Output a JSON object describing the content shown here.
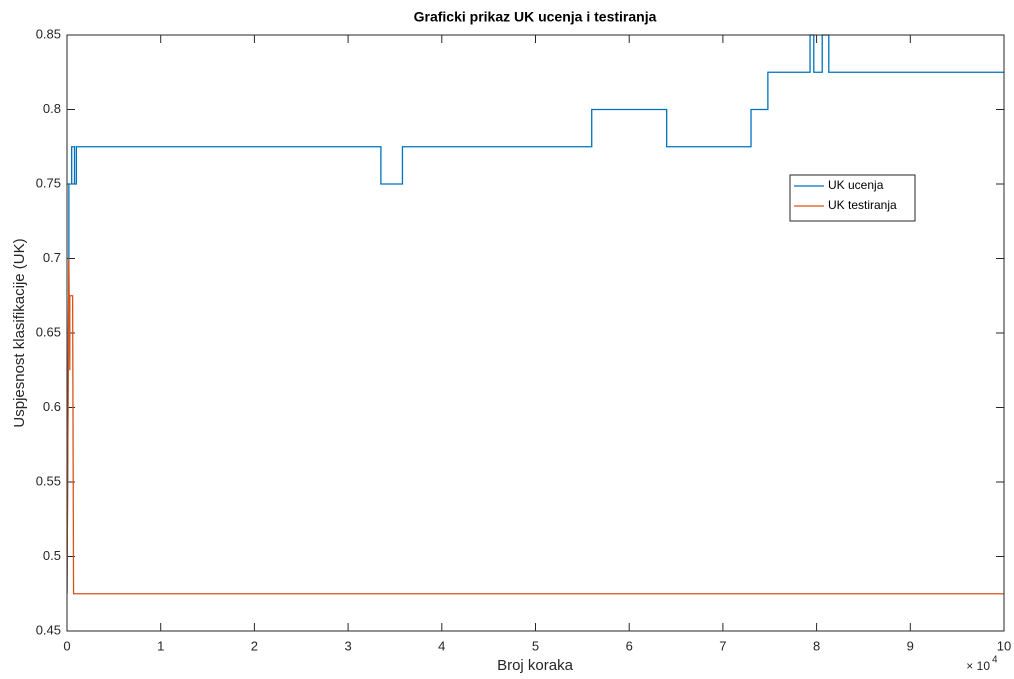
{
  "chart_data": {
    "type": "line",
    "title": "Graficki prikaz UK ucenja i testiranja",
    "xlabel": "Broj koraka",
    "ylabel": "Uspjesnost klasifikacije (UK)",
    "x_scale_base": "× 10",
    "x_scale_exponent": "4",
    "xlim": [
      0,
      10
    ],
    "xticks": [
      0,
      1,
      2,
      3,
      4,
      5,
      6,
      7,
      8,
      9,
      10
    ],
    "ylim": [
      0.45,
      0.85
    ],
    "yticks": [
      0.45,
      0.5,
      0.55,
      0.6,
      0.65,
      0.7,
      0.75,
      0.8,
      0.85
    ],
    "grid": false,
    "legend": "northeast",
    "series": [
      {
        "name": "UK ucenja",
        "color": "#0072bd",
        "x": [
          0,
          0.02,
          0.02,
          0.05,
          0.05,
          0.08,
          0.08,
          0.1,
          0.1,
          3.35,
          3.35,
          3.58,
          3.58,
          5.6,
          5.6,
          6.4,
          6.4,
          7.3,
          7.3,
          7.48,
          7.48,
          7.93,
          7.93,
          7.97,
          7.97,
          8.06,
          8.06,
          8.13,
          8.13,
          10
        ],
        "values": [
          0.475,
          0.7,
          0.75,
          0.75,
          0.775,
          0.775,
          0.75,
          0.75,
          0.775,
          0.775,
          0.75,
          0.75,
          0.775,
          0.775,
          0.8,
          0.8,
          0.775,
          0.775,
          0.8,
          0.8,
          0.825,
          0.825,
          0.85,
          0.85,
          0.825,
          0.825,
          0.85,
          0.85,
          0.825,
          0.825
        ]
      },
      {
        "name": "UK testiranja",
        "color": "#d95319",
        "x": [
          0,
          0.02,
          0.03,
          0.03,
          0.06,
          0.07,
          10
        ],
        "values": [
          0.475,
          0.7,
          0.625,
          0.675,
          0.675,
          0.475,
          0.475
        ]
      }
    ]
  }
}
